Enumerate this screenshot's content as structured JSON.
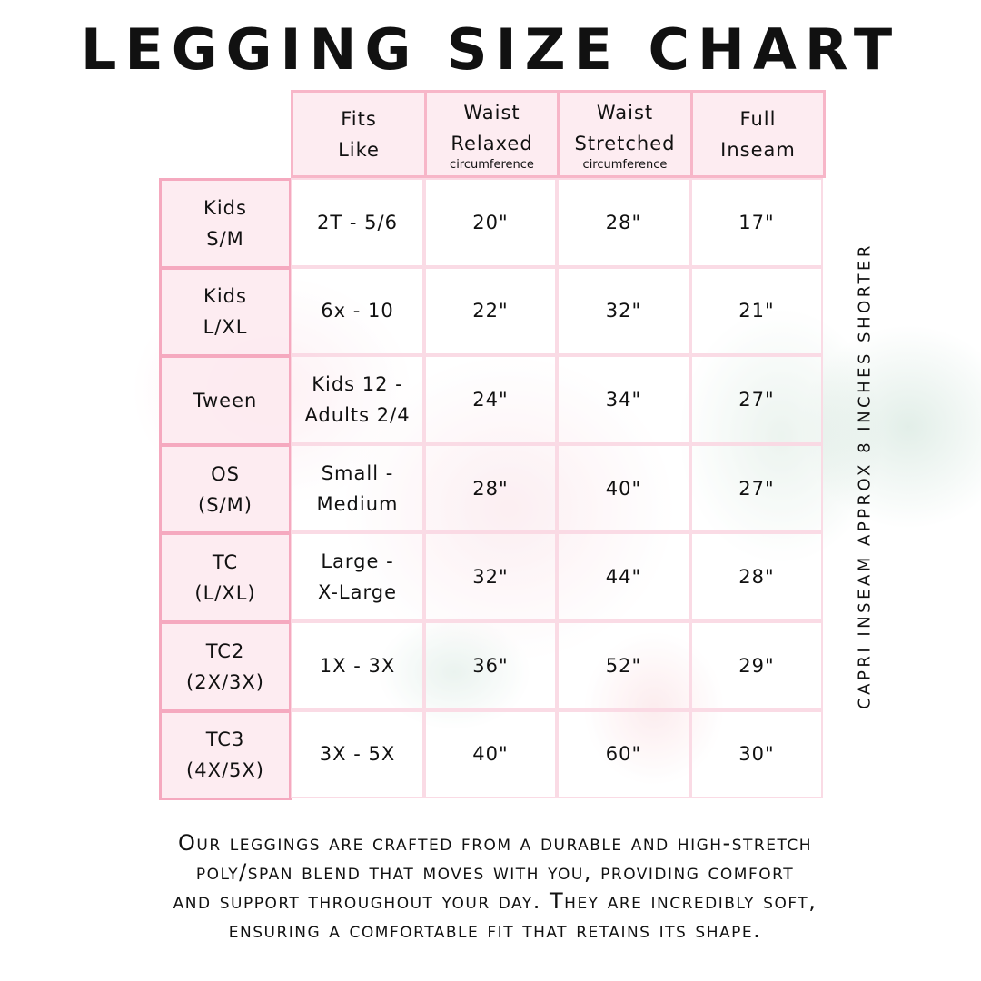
{
  "title": "LEGGING SIZE CHART",
  "table": {
    "headers": [
      {
        "line1": "Fits",
        "line2": "Like",
        "sub": ""
      },
      {
        "line1": "Waist",
        "line2": "Relaxed",
        "sub": "circumference"
      },
      {
        "line1": "Waist",
        "line2": "Stretched",
        "sub": "circumference"
      },
      {
        "line1": "Full",
        "line2": "Inseam",
        "sub": ""
      }
    ],
    "rows": [
      {
        "size1": "Kids",
        "size2": "S/M",
        "fits1": "2T - 5/6",
        "fits2": "",
        "relaxed": "20\"",
        "stretched": "28\"",
        "inseam": "17\""
      },
      {
        "size1": "Kids",
        "size2": "L/XL",
        "fits1": "6x - 10",
        "fits2": "",
        "relaxed": "22\"",
        "stretched": "32\"",
        "inseam": "21\""
      },
      {
        "size1": "Tween",
        "size2": "",
        "fits1": "Kids 12 -",
        "fits2": "Adults 2/4",
        "relaxed": "24\"",
        "stretched": "34\"",
        "inseam": "27\""
      },
      {
        "size1": "OS",
        "size2": "(S/M)",
        "fits1": "Small -",
        "fits2": "Medium",
        "relaxed": "28\"",
        "stretched": "40\"",
        "inseam": "27\""
      },
      {
        "size1": "TC",
        "size2": "(L/XL)",
        "fits1": "Large -",
        "fits2": "X-Large",
        "relaxed": "32\"",
        "stretched": "44\"",
        "inseam": "28\""
      },
      {
        "size1": "TC2",
        "size2": "(2X/3X)",
        "fits1": "1X - 3X",
        "fits2": "",
        "relaxed": "36\"",
        "stretched": "52\"",
        "inseam": "29\""
      },
      {
        "size1": "TC3",
        "size2": "(4X/5X)",
        "fits1": "3X - 5X",
        "fits2": "",
        "relaxed": "40\"",
        "stretched": "60\"",
        "inseam": "30\""
      }
    ]
  },
  "side_note": "CAPRI INSEAM APPROX 8 INCHES SHORTER",
  "description": [
    "Our leggings are crafted from a durable and high-stretch",
    "poly/span blend that moves with you, providing comfort",
    "and support throughout your day. They are incredibly soft,",
    "ensuring a comfortable fit that retains its shape."
  ],
  "colors": {
    "border": "#f7b6c8",
    "header_fill": "#fdeaf0"
  }
}
